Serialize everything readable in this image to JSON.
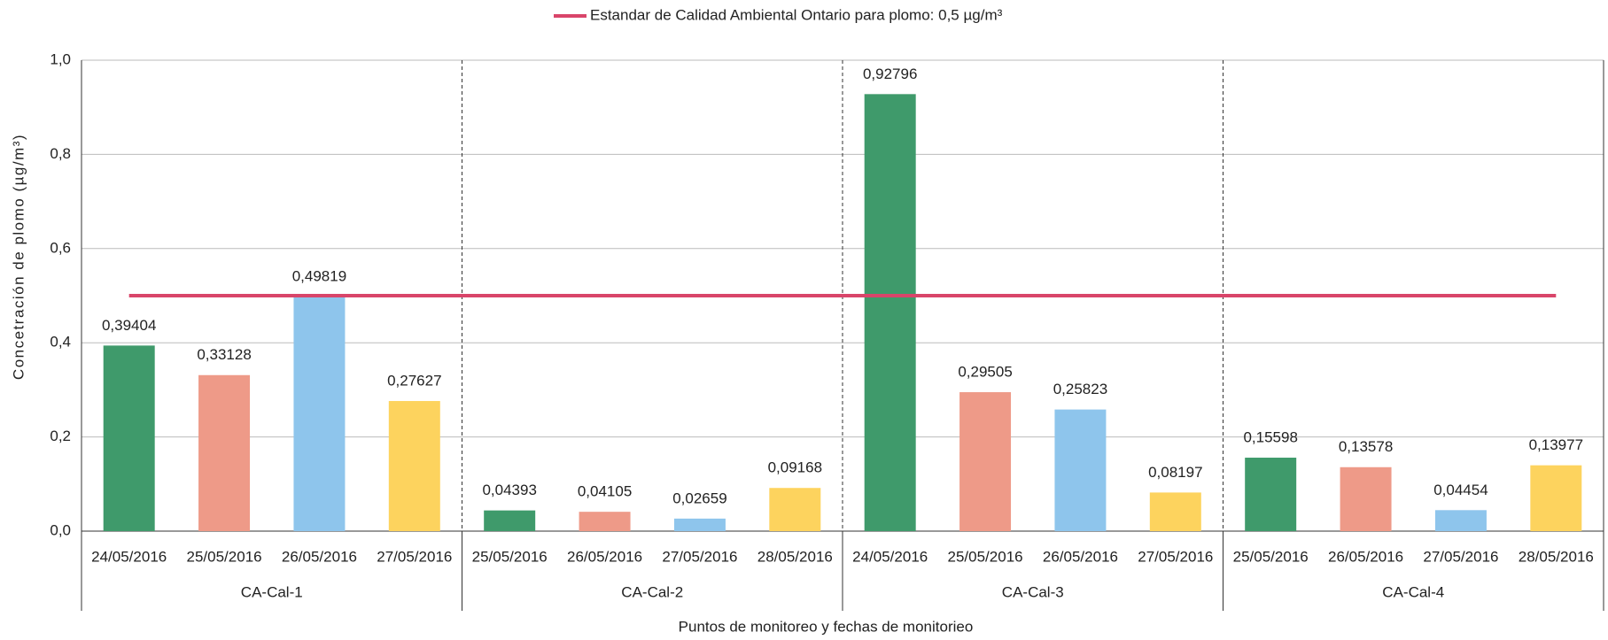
{
  "chart_data": {
    "type": "bar",
    "legend_label": "Estandar de Calidad Ambiental Ontario para plomo: 0,5 µg/m³",
    "reference_value": 0.5,
    "reference_color": "#d9456a",
    "y_label": "Concetración de plomo (µg/m³)",
    "x_label": "Puntos de monitoreo y fechas de monitorieo",
    "colors": [
      "#3f9a6b",
      "#ee9a88",
      "#8ec5ec",
      "#fdd35e"
    ],
    "ylim": [
      0,
      1
    ],
    "yticks": [
      {
        "value": 0,
        "label": "0,0"
      },
      {
        "value": 0.2,
        "label": "0,2"
      },
      {
        "value": 0.4,
        "label": "0,4"
      },
      {
        "value": 0.6,
        "label": "0,6"
      },
      {
        "value": 0.8,
        "label": "0,8"
      },
      {
        "value": 1,
        "label": "1,0"
      }
    ],
    "grid": true,
    "groups": [
      {
        "name": "CA-Cal-1",
        "categories": [
          "24/05/2016",
          "25/05/2016",
          "26/05/2016",
          "27/05/2016"
        ],
        "values": [
          0.39404,
          0.33128,
          0.49819,
          0.27627
        ],
        "value_labels": [
          "0,39404",
          "0,33128",
          "0,49819",
          "0,27627"
        ]
      },
      {
        "name": "CA-Cal-2",
        "categories": [
          "25/05/2016",
          "26/05/2016",
          "27/05/2016",
          "28/05/2016"
        ],
        "values": [
          0.04393,
          0.04105,
          0.02659,
          0.09168
        ],
        "value_labels": [
          "0,04393",
          "0,04105",
          "0,02659",
          "0,09168"
        ]
      },
      {
        "name": "CA-Cal-3",
        "categories": [
          "24/05/2016",
          "25/05/2016",
          "26/05/2016",
          "27/05/2016"
        ],
        "values": [
          0.92796,
          0.29505,
          0.25823,
          0.08197
        ],
        "value_labels": [
          "0,92796",
          "0,29505",
          "0,25823",
          "0,08197"
        ]
      },
      {
        "name": "CA-Cal-4",
        "categories": [
          "25/05/2016",
          "26/05/2016",
          "27/05/2016",
          "28/05/2016"
        ],
        "values": [
          0.15598,
          0.13578,
          0.04454,
          0.13977
        ],
        "value_labels": [
          "0,15598",
          "0,13578",
          "0,04454",
          "0,13977"
        ]
      }
    ]
  }
}
